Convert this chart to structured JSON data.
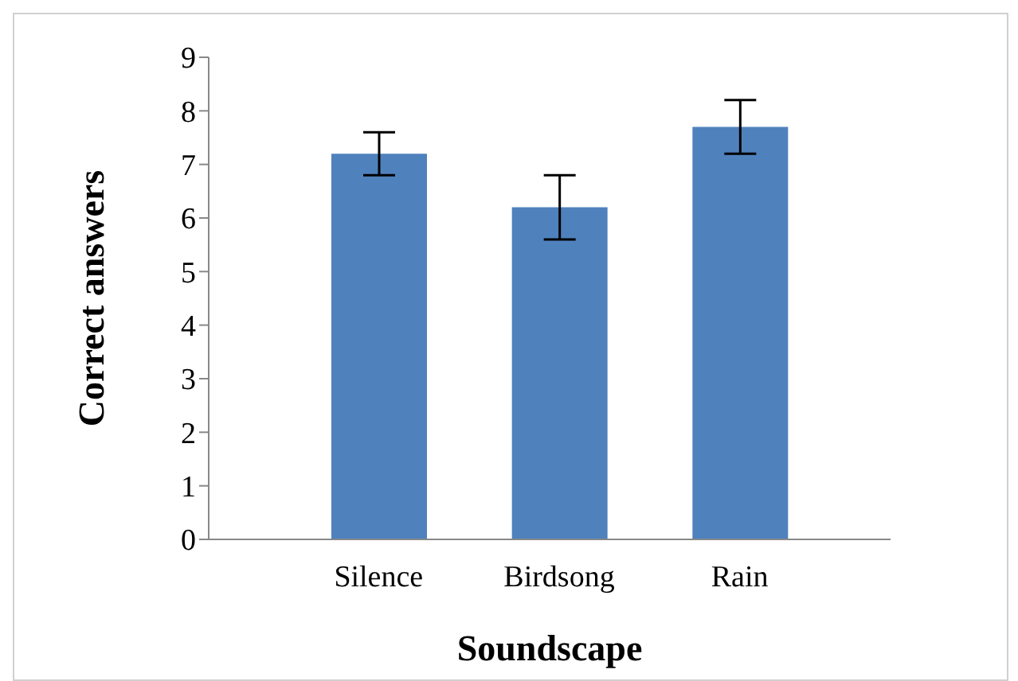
{
  "chart_data": {
    "type": "bar",
    "xlabel": "Soundscape",
    "ylabel": "Correct answers",
    "categories": [
      "Silence",
      "Birdsong",
      "Rain"
    ],
    "values": [
      7.2,
      6.2,
      7.7
    ],
    "errors": [
      0.4,
      0.6,
      0.5
    ],
    "color": "#4f81bd",
    "ylim": [
      0,
      9
    ],
    "yticks": [
      0,
      1,
      2,
      3,
      4,
      5,
      6,
      7,
      8,
      9
    ],
    "grid": false,
    "legend": false
  }
}
